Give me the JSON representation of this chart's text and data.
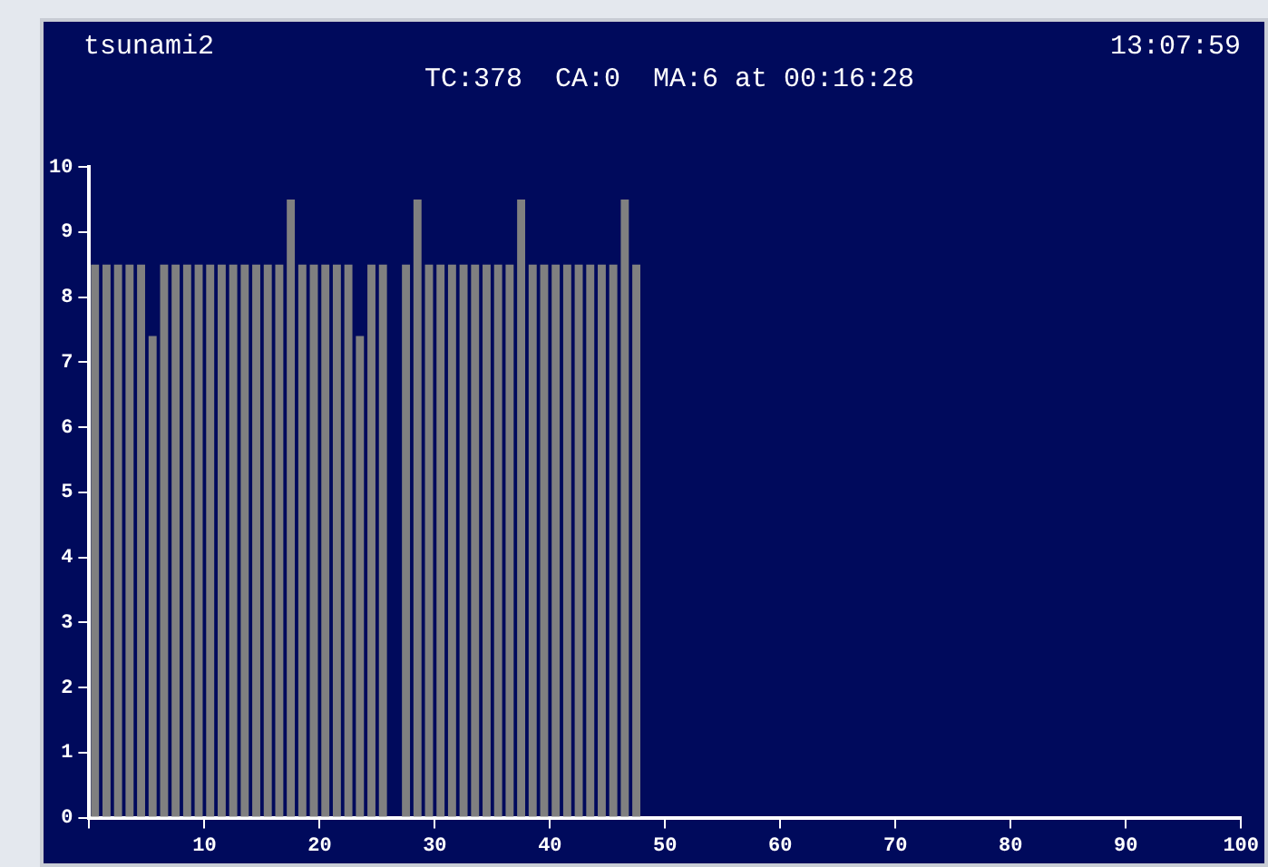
{
  "chart_data": {
    "type": "bar",
    "title": "tsunami2",
    "subtitle": "TC:378  CA:0  MA:6 at 00:16:28",
    "annotations": [
      "13:07:59"
    ],
    "x": [
      0.5,
      1.5,
      2.5,
      3.5,
      4.5,
      5.5,
      6.5,
      7.5,
      8.5,
      9.5,
      10.5,
      11.5,
      12.5,
      13.5,
      14.5,
      15.5,
      16.5,
      17.5,
      18.5,
      19.5,
      20.5,
      21.5,
      22.5,
      23.5,
      24.5,
      25.5,
      26.5,
      27.5,
      28.5,
      29.5,
      30.5,
      31.5,
      32.5,
      33.5,
      34.5,
      35.5,
      36.5,
      37.5,
      38.5,
      39.5,
      40.5,
      41.5,
      42.5,
      43.5,
      44.5,
      45.5,
      46.5,
      47.5
    ],
    "values": [
      8.5,
      8.5,
      8.5,
      8.5,
      8.5,
      7.4,
      8.5,
      8.5,
      8.5,
      8.5,
      8.5,
      8.5,
      8.5,
      8.5,
      8.5,
      8.5,
      8.5,
      9.5,
      8.5,
      8.5,
      8.5,
      8.5,
      8.5,
      7.4,
      8.5,
      8.5,
      null,
      8.5,
      9.5,
      8.5,
      8.5,
      8.5,
      8.5,
      8.5,
      8.5,
      8.5,
      8.5,
      9.5,
      8.5,
      8.5,
      8.5,
      8.5,
      8.5,
      8.5,
      8.5,
      8.5,
      9.5,
      8.5
    ],
    "color": "#808080",
    "xlim": [
      0,
      100
    ],
    "xticks": [
      {
        "value": 0,
        "label": null
      },
      10,
      20,
      30,
      40,
      50,
      60,
      70,
      80,
      90,
      100
    ],
    "ylim": [
      0,
      10
    ],
    "yticks": [
      0,
      1,
      2,
      3,
      4,
      5,
      6,
      7,
      8,
      9,
      10
    ],
    "grid": false,
    "legend": false
  }
}
